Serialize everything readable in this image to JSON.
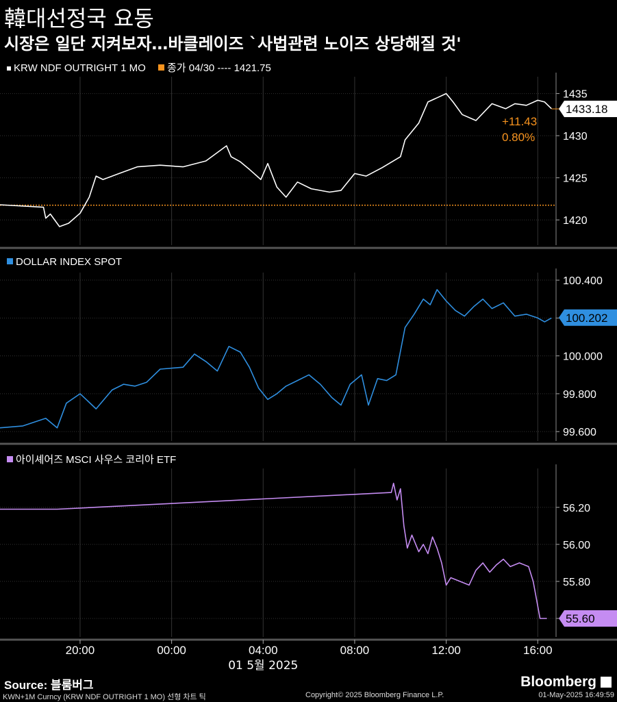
{
  "header": {
    "title": "韓대선정국 요동",
    "subtitle": "시장은 일단 지켜보자…바클레이즈 `사법관련 노이즈 상당해질 것'"
  },
  "colors": {
    "krw": "#ffffff",
    "prev_close": "#f7931e",
    "dxy": "#2f8fe0",
    "etf": "#c58cf2",
    "grid": "#333333",
    "separator": "#555555"
  },
  "panels": {
    "krw": {
      "legend_label": "KRW NDF OUTRIGHT 1 MO",
      "close_label": "종가 04/30 ---- 1421.75",
      "last_value": "1433.18",
      "change": "+11.43",
      "change_pct": "0.80%"
    },
    "dxy": {
      "legend_label": "DOLLAR INDEX SPOT",
      "last_value": "100.202"
    },
    "etf": {
      "legend_label": "아이셰어즈 MSCI 사우스 코리아 ETF",
      "last_value": "55.60"
    }
  },
  "x_axis": {
    "ticks": [
      "20:00",
      "00:00",
      "04:00",
      "08:00",
      "12:00",
      "16:00"
    ],
    "date_label": "01 5월 2025"
  },
  "footer": {
    "source": "Source:  블룸버그",
    "brand": "Bloomberg",
    "brand_icon": "bloomberg-chart-icon",
    "left_note": "KWN+1M Curncy (KRW NDF OUTRIGHT  1 MO) 선형 차트   틱",
    "center_note": "Copyright© 2025 Bloomberg Finance L.P.",
    "right_note": "01-May-2025 16:49:59"
  },
  "chart_data": [
    {
      "type": "line",
      "name": "KRW NDF OUTRIGHT 1 MO",
      "x_unit": "hours relative to 00:00 01-May-2025",
      "xlim": [
        -7.5,
        16.8
      ],
      "ylim": [
        1417,
        1437
      ],
      "y_ticks": [
        1420,
        1425,
        1430,
        1435
      ],
      "prev_close": 1421.75,
      "last": 1433.18,
      "x": [
        -7.5,
        -5.6,
        -5.5,
        -5.3,
        -4.9,
        -4.5,
        -4.0,
        -3.6,
        -3.3,
        -3.0,
        -2.3,
        -1.5,
        -0.5,
        0.5,
        1.5,
        2.4,
        2.6,
        3.0,
        3.4,
        3.9,
        4.2,
        4.6,
        5.0,
        5.5,
        6.1,
        6.9,
        7.4,
        8.0,
        8.5,
        9.2,
        10.0,
        10.2,
        10.8,
        11.2,
        11.6,
        12.0,
        12.3,
        12.7,
        13.3,
        14.0,
        14.6,
        15.0,
        15.5,
        16.0,
        16.3,
        16.6
      ],
      "y": [
        1421.8,
        1421.5,
        1420.2,
        1420.7,
        1419.2,
        1419.6,
        1420.8,
        1422.7,
        1425.2,
        1424.8,
        1425.5,
        1426.3,
        1426.5,
        1426.3,
        1427.0,
        1428.8,
        1427.5,
        1426.9,
        1426.0,
        1424.8,
        1426.7,
        1423.9,
        1422.7,
        1424.5,
        1423.7,
        1423.3,
        1423.5,
        1425.5,
        1425.2,
        1426.2,
        1427.5,
        1429.5,
        1431.5,
        1434.0,
        1434.5,
        1435.0,
        1434.0,
        1432.5,
        1431.8,
        1433.8,
        1433.2,
        1433.8,
        1433.6,
        1434.2,
        1434.0,
        1433.2
      ]
    },
    {
      "type": "line",
      "name": "DOLLAR INDEX SPOT",
      "x_unit": "hours relative to 00:00 01-May-2025",
      "xlim": [
        -7.5,
        16.8
      ],
      "ylim": [
        99.55,
        100.44
      ],
      "y_ticks": [
        99.6,
        99.8,
        100.0,
        100.2,
        100.4
      ],
      "last": 100.202,
      "x": [
        -7.5,
        -6.5,
        -5.5,
        -5.0,
        -4.6,
        -4.0,
        -3.3,
        -2.6,
        -2.1,
        -1.6,
        -1.1,
        -0.5,
        0.5,
        1.0,
        1.5,
        2.0,
        2.5,
        3.0,
        3.4,
        3.8,
        4.2,
        4.6,
        5.0,
        5.5,
        6.0,
        6.5,
        7.0,
        7.4,
        7.8,
        8.3,
        8.6,
        9.0,
        9.4,
        9.8,
        10.2,
        10.6,
        11.0,
        11.3,
        11.6,
        12.0,
        12.4,
        12.8,
        13.2,
        13.6,
        14.0,
        14.5,
        15.0,
        15.5,
        16.0,
        16.3,
        16.6
      ],
      "y": [
        99.62,
        99.63,
        99.67,
        99.62,
        99.75,
        99.8,
        99.72,
        99.82,
        99.85,
        99.84,
        99.86,
        99.93,
        99.94,
        100.01,
        99.97,
        99.92,
        100.05,
        100.02,
        99.94,
        99.83,
        99.77,
        99.8,
        99.84,
        99.87,
        99.9,
        99.85,
        99.78,
        99.74,
        99.85,
        99.9,
        99.74,
        99.88,
        99.87,
        99.9,
        100.15,
        100.22,
        100.3,
        100.27,
        100.35,
        100.29,
        100.24,
        100.21,
        100.26,
        100.3,
        100.25,
        100.28,
        100.21,
        100.22,
        100.2,
        100.18,
        100.2
      ]
    },
    {
      "type": "line",
      "name": "아이셰어즈 MSCI 사우스 코리아 ETF",
      "x_unit": "hours relative to 00:00 01-May-2025",
      "xlim": [
        -7.5,
        16.8
      ],
      "ylim": [
        55.5,
        56.41
      ],
      "y_ticks": [
        55.6,
        55.8,
        56.0,
        56.2
      ],
      "last": 55.6,
      "x": [
        -7.5,
        -5.0,
        9.6,
        9.7,
        9.85,
        10.0,
        10.15,
        10.3,
        10.5,
        10.8,
        11.0,
        11.2,
        11.4,
        11.6,
        11.8,
        12.0,
        12.2,
        12.6,
        13.0,
        13.3,
        13.6,
        13.9,
        14.2,
        14.5,
        14.8,
        15.2,
        15.6,
        15.8,
        15.95,
        16.1,
        16.4
      ],
      "y": [
        56.19,
        56.19,
        56.28,
        56.33,
        56.24,
        56.3,
        56.1,
        55.98,
        56.05,
        55.96,
        56.0,
        55.95,
        56.04,
        55.98,
        55.9,
        55.78,
        55.82,
        55.8,
        55.78,
        55.86,
        55.9,
        55.85,
        55.89,
        55.92,
        55.88,
        55.9,
        55.88,
        55.8,
        55.7,
        55.6,
        55.6
      ]
    }
  ]
}
